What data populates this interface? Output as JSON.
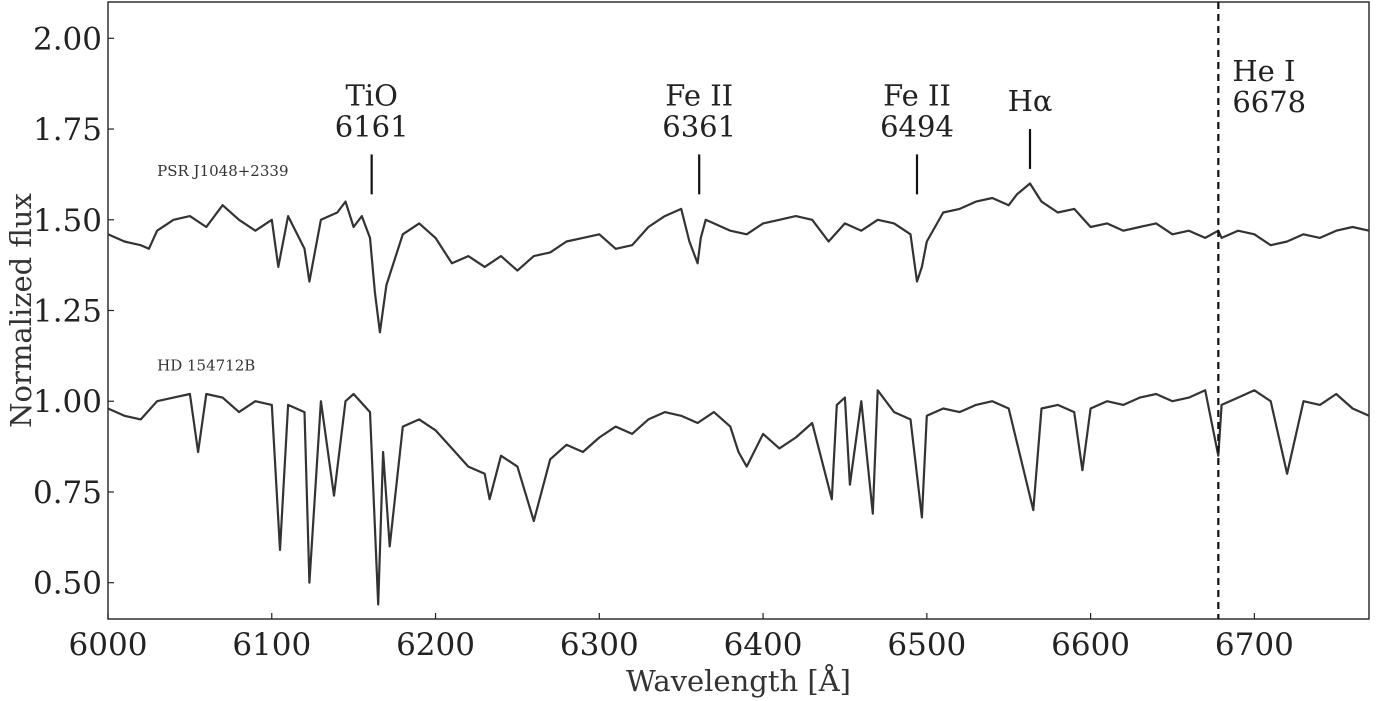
{
  "chart_data": {
    "type": "line",
    "title": "",
    "xlabel": "Wavelength [Å]",
    "ylabel": "Normalized flux",
    "xlim": [
      6000,
      6770
    ],
    "ylim": [
      0.4,
      2.1
    ],
    "xticks": [
      6000,
      6100,
      6200,
      6300,
      6400,
      6500,
      6600,
      6700
    ],
    "yticks": [
      0.5,
      0.75,
      1.0,
      1.25,
      1.5,
      1.75,
      2.0
    ],
    "ytick_labels": [
      "0.50",
      "0.75",
      "1.00",
      "1.25",
      "1.50",
      "1.75",
      "2.00"
    ],
    "grid": false,
    "legend": "none",
    "line_color": "#333333",
    "series": [
      {
        "name": "PSR J1048+2339",
        "x": [
          6000,
          6010,
          6020,
          6025,
          6030,
          6040,
          6050,
          6060,
          6070,
          6080,
          6090,
          6100,
          6104,
          6110,
          6120,
          6123,
          6130,
          6140,
          6145,
          6150,
          6155,
          6160,
          6163,
          6166,
          6170,
          6180,
          6190,
          6200,
          6210,
          6220,
          6230,
          6240,
          6250,
          6260,
          6270,
          6280,
          6290,
          6300,
          6310,
          6320,
          6330,
          6340,
          6350,
          6355,
          6360,
          6362,
          6365,
          6370,
          6380,
          6390,
          6400,
          6410,
          6420,
          6430,
          6440,
          6450,
          6460,
          6470,
          6480,
          6490,
          6494,
          6497,
          6500,
          6510,
          6520,
          6530,
          6540,
          6550,
          6555,
          6563,
          6570,
          6580,
          6590,
          6600,
          6610,
          6620,
          6630,
          6640,
          6650,
          6660,
          6670,
          6678,
          6680,
          6690,
          6700,
          6710,
          6720,
          6730,
          6740,
          6750,
          6760,
          6770
        ],
        "y": [
          1.46,
          1.44,
          1.43,
          1.42,
          1.47,
          1.5,
          1.51,
          1.48,
          1.54,
          1.5,
          1.47,
          1.5,
          1.37,
          1.51,
          1.42,
          1.33,
          1.5,
          1.52,
          1.55,
          1.48,
          1.51,
          1.45,
          1.3,
          1.19,
          1.32,
          1.46,
          1.49,
          1.45,
          1.38,
          1.4,
          1.37,
          1.4,
          1.36,
          1.4,
          1.41,
          1.44,
          1.45,
          1.46,
          1.42,
          1.43,
          1.48,
          1.51,
          1.53,
          1.44,
          1.38,
          1.45,
          1.5,
          1.49,
          1.47,
          1.46,
          1.49,
          1.5,
          1.51,
          1.5,
          1.44,
          1.49,
          1.47,
          1.5,
          1.49,
          1.46,
          1.33,
          1.37,
          1.44,
          1.52,
          1.53,
          1.55,
          1.56,
          1.54,
          1.57,
          1.6,
          1.55,
          1.52,
          1.53,
          1.48,
          1.49,
          1.47,
          1.48,
          1.49,
          1.46,
          1.47,
          1.45,
          1.47,
          1.45,
          1.47,
          1.46,
          1.43,
          1.44,
          1.46,
          1.45,
          1.47,
          1.48,
          1.47
        ]
      },
      {
        "name": "HD 154712B",
        "x": [
          6000,
          6010,
          6020,
          6030,
          6040,
          6050,
          6055,
          6060,
          6070,
          6080,
          6090,
          6100,
          6105,
          6110,
          6120,
          6123,
          6130,
          6138,
          6145,
          6150,
          6160,
          6165,
          6168,
          6172,
          6180,
          6190,
          6200,
          6210,
          6220,
          6230,
          6233,
          6240,
          6250,
          6260,
          6270,
          6280,
          6290,
          6300,
          6310,
          6320,
          6330,
          6340,
          6350,
          6360,
          6370,
          6380,
          6385,
          6390,
          6400,
          6410,
          6420,
          6430,
          6442,
          6445,
          6450,
          6453,
          6460,
          6467,
          6470,
          6480,
          6490,
          6497,
          6500,
          6510,
          6520,
          6530,
          6540,
          6550,
          6565,
          6570,
          6580,
          6590,
          6595,
          6600,
          6610,
          6620,
          6630,
          6640,
          6650,
          6660,
          6670,
          6678,
          6680,
          6690,
          6700,
          6710,
          6720,
          6730,
          6740,
          6750,
          6760,
          6770
        ],
        "y": [
          0.98,
          0.96,
          0.95,
          1.0,
          1.01,
          1.02,
          0.86,
          1.02,
          1.01,
          0.97,
          1.0,
          0.99,
          0.59,
          0.99,
          0.97,
          0.5,
          1.0,
          0.74,
          1.0,
          1.02,
          0.97,
          0.44,
          0.86,
          0.6,
          0.93,
          0.95,
          0.92,
          0.87,
          0.82,
          0.8,
          0.73,
          0.85,
          0.82,
          0.67,
          0.84,
          0.88,
          0.86,
          0.9,
          0.93,
          0.91,
          0.95,
          0.97,
          0.96,
          0.94,
          0.97,
          0.93,
          0.86,
          0.82,
          0.91,
          0.87,
          0.9,
          0.94,
          0.73,
          0.99,
          1.01,
          0.77,
          1.0,
          0.69,
          1.03,
          0.97,
          0.95,
          0.68,
          0.96,
          0.98,
          0.97,
          0.99,
          1.0,
          0.98,
          0.7,
          0.98,
          0.99,
          0.97,
          0.81,
          0.98,
          1.0,
          0.99,
          1.01,
          1.02,
          1.0,
          1.01,
          1.03,
          0.85,
          0.99,
          1.01,
          1.03,
          1.0,
          0.8,
          1.0,
          0.99,
          1.02,
          0.98,
          0.96
        ]
      }
    ],
    "vlines": [
      {
        "x": 6678,
        "style": "dashed"
      }
    ],
    "line_marks": [
      {
        "label_lines": [
          "TiO",
          "6161"
        ],
        "x": 6161,
        "y1": 1.57,
        "y2": 1.68
      },
      {
        "label_lines": [
          "Fe II",
          "6361"
        ],
        "x": 6361,
        "y1": 1.57,
        "y2": 1.68
      },
      {
        "label_lines": [
          "Fe II",
          "6494"
        ],
        "x": 6494,
        "y1": 1.57,
        "y2": 1.68
      },
      {
        "label_lines": [
          "Hα"
        ],
        "x": 6563,
        "y1": 1.64,
        "y2": 1.75
      },
      {
        "label_lines": [
          "He I",
          "6678"
        ],
        "x": 6678,
        "y1": null,
        "y2": null
      }
    ],
    "annotations": [
      {
        "text": "PSR J1048+2339",
        "x": 6030,
        "y": 1.62
      },
      {
        "text": "HD 154712B",
        "x": 6030,
        "y": 1.085
      }
    ]
  }
}
